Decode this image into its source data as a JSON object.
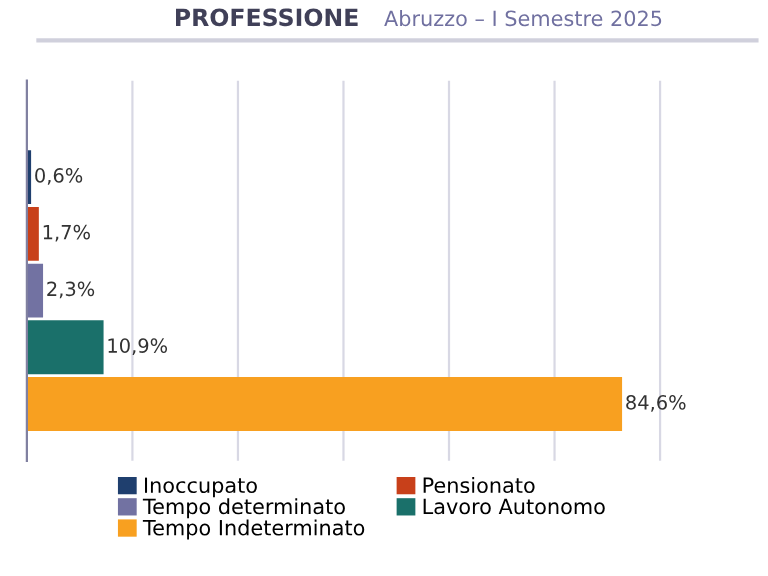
{
  "chart_data": {
    "type": "bar",
    "orientation": "horizontal",
    "stacked": true,
    "title": "PROFESSIONE",
    "subtitle": "Abruzzo – I Semestre 2025",
    "categories": [
      null,
      null,
      null,
      null,
      null
    ],
    "series": [
      {
        "name": "Inoccupato",
        "color": "#1f3f6e",
        "values": [
          0.6,
          null,
          null,
          null,
          null
        ],
        "value_labels": [
          "0,6%",
          null,
          null,
          null,
          null
        ]
      },
      {
        "name": "Pensionato",
        "color": "#c8401a",
        "values": [
          null,
          1.7,
          null,
          null,
          null
        ],
        "value_labels": [
          null,
          "1,7%",
          null,
          null,
          null
        ]
      },
      {
        "name": "Tempo determinato",
        "color": "#7272a2",
        "values": [
          null,
          null,
          2.3,
          null,
          null
        ],
        "value_labels": [
          null,
          null,
          "2,3%",
          null,
          null
        ]
      },
      {
        "name": "Lavoro Autonomo",
        "color": "#1a706a",
        "values": [
          null,
          null,
          null,
          10.9,
          null
        ],
        "value_labels": [
          null,
          null,
          null,
          "10,9%",
          null
        ]
      },
      {
        "name": "Tempo Indeterminato",
        "color": "#f8a020",
        "values": [
          null,
          null,
          null,
          null,
          84.6
        ],
        "value_labels": [
          null,
          null,
          null,
          null,
          "84,6%"
        ]
      }
    ],
    "grid": "x",
    "legend": "bottom"
  }
}
